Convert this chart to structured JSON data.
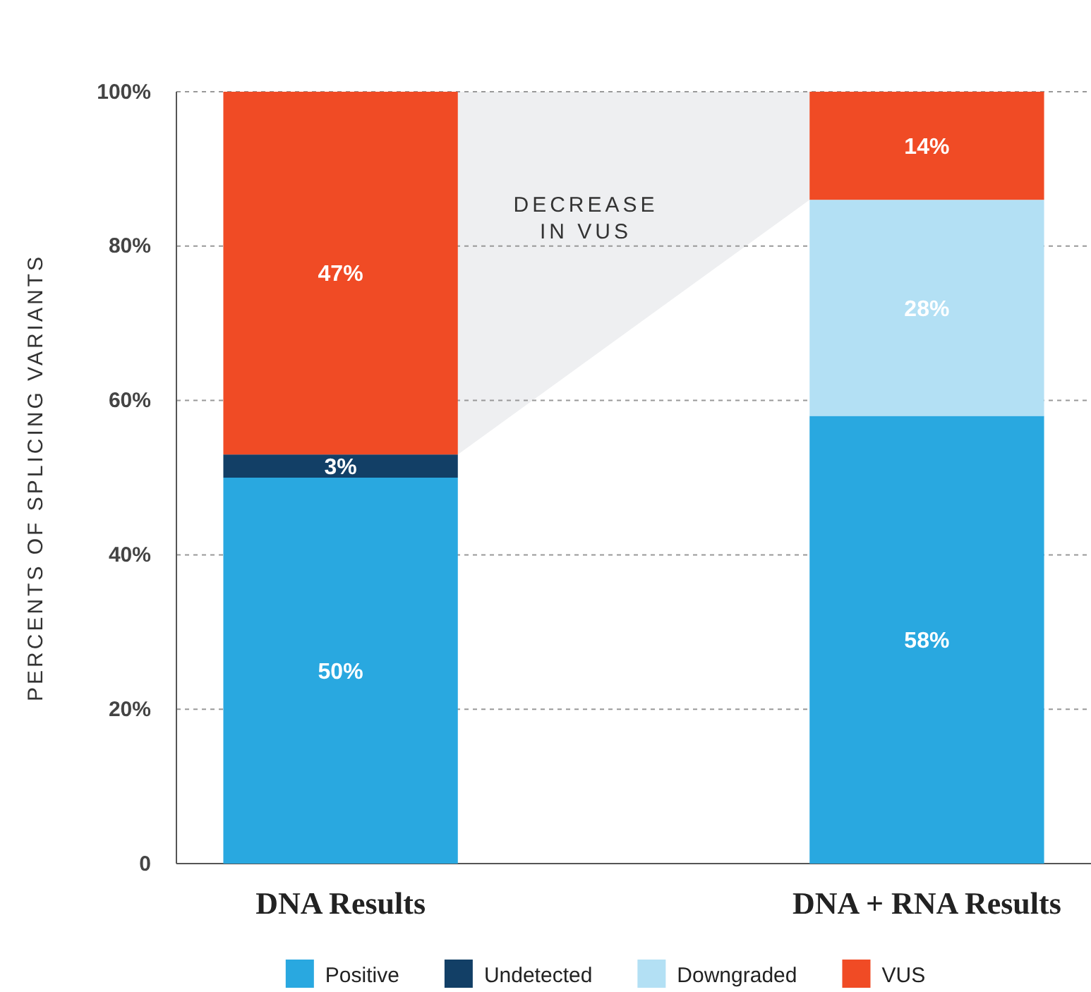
{
  "chart_data": {
    "type": "bar",
    "stacked": true,
    "ylabel": "PERCENTS OF SPLICING VARIANTS",
    "categories": [
      "DNA Results",
      "DNA + RNA Results"
    ],
    "series": [
      {
        "name": "Positive",
        "color": "#29a8e0",
        "values": [
          50,
          58
        ],
        "value_labels": [
          "50%",
          "58%"
        ]
      },
      {
        "name": "Undetected",
        "color": "#123f66",
        "values": [
          3,
          null
        ],
        "value_labels": [
          "3%",
          null
        ]
      },
      {
        "name": "Downgraded",
        "color": "#b3e0f4",
        "values": [
          null,
          28
        ],
        "value_labels": [
          null,
          "28%"
        ]
      },
      {
        "name": "VUS",
        "color": "#f04b25",
        "values": [
          47,
          14
        ],
        "value_labels": [
          "47%",
          "14%"
        ]
      }
    ],
    "ylim": [
      0,
      100
    ],
    "yticks": [
      {
        "value": 0,
        "label": "0"
      },
      {
        "value": 20,
        "label": "20%"
      },
      {
        "value": 40,
        "label": "40%"
      },
      {
        "value": 60,
        "label": "60%"
      },
      {
        "value": 80,
        "label": "80%"
      },
      {
        "value": 100,
        "label": "100%"
      }
    ],
    "grid": "y",
    "legend": "bottom",
    "annotations": [
      "DECREASE IN VUS"
    ]
  }
}
